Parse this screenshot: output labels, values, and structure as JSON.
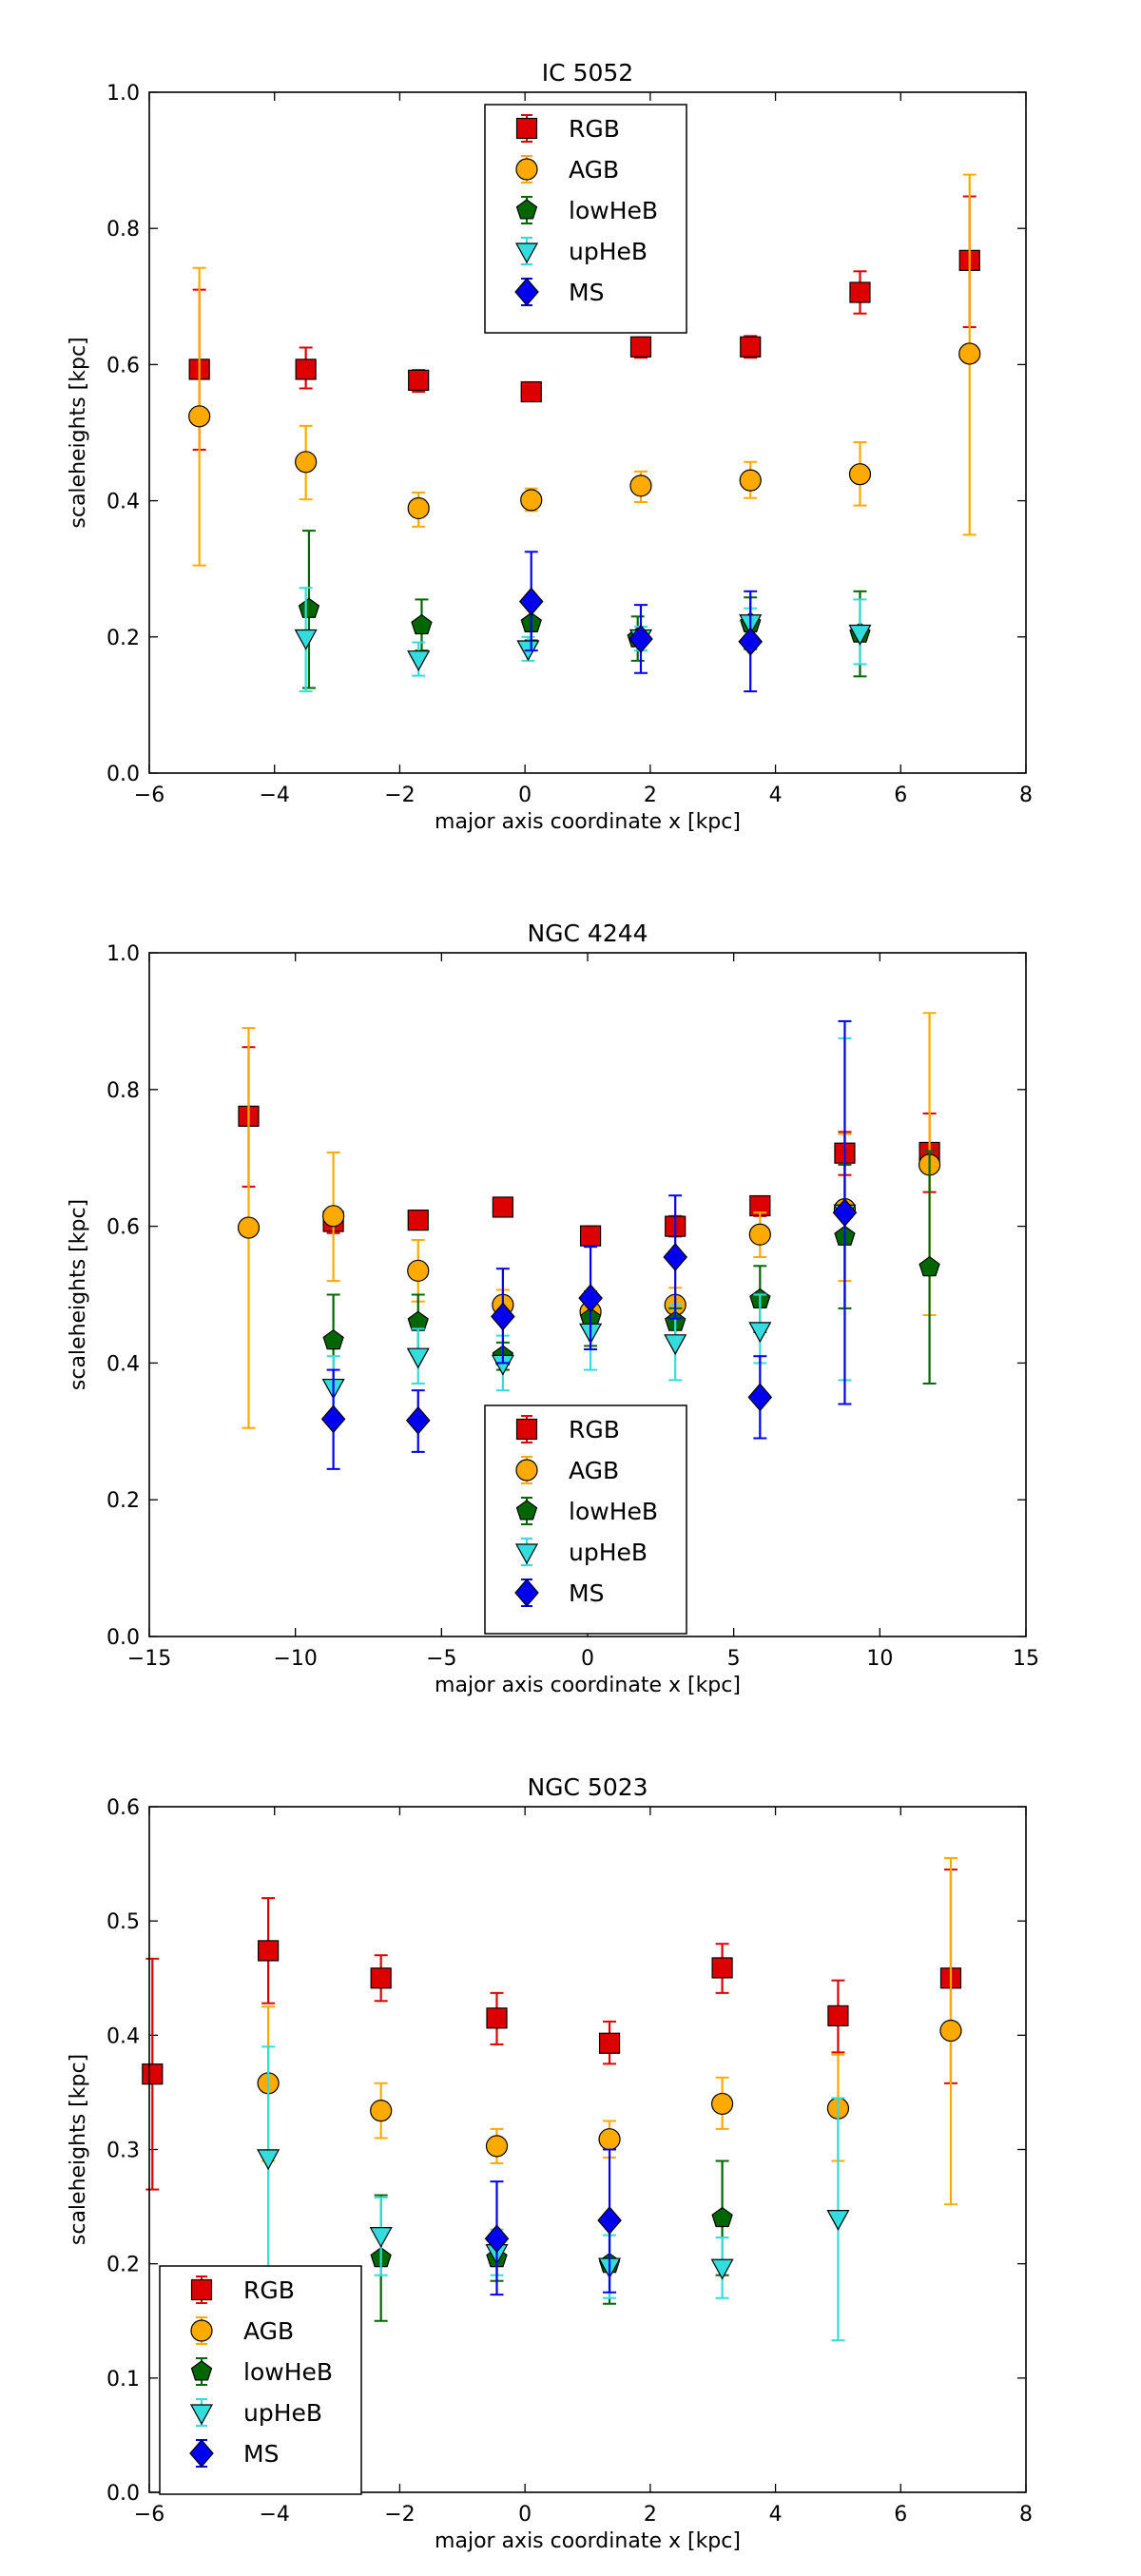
{
  "chart_data": [
    {
      "type": "scatter",
      "title": "IC 5052",
      "xlabel": "major axis coordinate x [kpc]",
      "ylabel": "scaleheights [kpc]",
      "xlim": [
        -6,
        8
      ],
      "ylim": [
        0.0,
        1.0
      ],
      "xticks": [
        -6,
        -4,
        -2,
        0,
        2,
        4,
        6,
        8
      ],
      "xtick_labels": [
        "−6",
        "−4",
        "−2",
        "0",
        "2",
        "4",
        "6",
        "8"
      ],
      "yticks": [
        0.0,
        0.2,
        0.4,
        0.6,
        0.8,
        1.0
      ],
      "ytick_labels": [
        "0.0",
        "0.2",
        "0.4",
        "0.6",
        "0.8",
        "1.0"
      ],
      "legend_position": "upper-center",
      "series": [
        {
          "name": "RGB",
          "marker": "square",
          "color": "#dd0000",
          "points": [
            {
              "x": -5.2,
              "y": 0.593,
              "lo": 0.475,
              "hi": 0.71
            },
            {
              "x": -3.5,
              "y": 0.593,
              "lo": 0.565,
              "hi": 0.625
            },
            {
              "x": -1.7,
              "y": 0.577,
              "lo": 0.56,
              "hi": 0.592
            },
            {
              "x": 0.1,
              "y": 0.56,
              "lo": 0.555,
              "hi": 0.565
            },
            {
              "x": 1.85,
              "y": 0.626,
              "lo": 0.61,
              "hi": 0.64
            },
            {
              "x": 3.6,
              "y": 0.626,
              "lo": 0.61,
              "hi": 0.642
            },
            {
              "x": 5.35,
              "y": 0.706,
              "lo": 0.675,
              "hi": 0.737
            },
            {
              "x": 7.1,
              "y": 0.753,
              "lo": 0.655,
              "hi": 0.847
            }
          ]
        },
        {
          "name": "AGB",
          "marker": "circle",
          "color": "#ffaa00",
          "points": [
            {
              "x": -5.2,
              "y": 0.524,
              "lo": 0.305,
              "hi": 0.742
            },
            {
              "x": -3.5,
              "y": 0.457,
              "lo": 0.402,
              "hi": 0.51
            },
            {
              "x": -1.7,
              "y": 0.389,
              "lo": 0.362,
              "hi": 0.412
            },
            {
              "x": 0.1,
              "y": 0.401,
              "lo": 0.385,
              "hi": 0.418
            },
            {
              "x": 1.85,
              "y": 0.422,
              "lo": 0.398,
              "hi": 0.443
            },
            {
              "x": 3.6,
              "y": 0.43,
              "lo": 0.404,
              "hi": 0.457
            },
            {
              "x": 5.35,
              "y": 0.439,
              "lo": 0.393,
              "hi": 0.486
            },
            {
              "x": 7.1,
              "y": 0.616,
              "lo": 0.35,
              "hi": 0.879
            }
          ]
        },
        {
          "name": "lowHeB",
          "marker": "pentagon",
          "color": "#006600",
          "points": [
            {
              "x": -3.45,
              "y": 0.241,
              "lo": 0.125,
              "hi": 0.356
            },
            {
              "x": -1.65,
              "y": 0.217,
              "lo": 0.18,
              "hi": 0.255
            },
            {
              "x": 0.1,
              "y": 0.22,
              "lo": 0.195,
              "hi": 0.245
            },
            {
              "x": 1.8,
              "y": 0.198,
              "lo": 0.165,
              "hi": 0.23
            },
            {
              "x": 3.6,
              "y": 0.22,
              "lo": 0.182,
              "hi": 0.258
            },
            {
              "x": 5.35,
              "y": 0.205,
              "lo": 0.142,
              "hi": 0.267
            }
          ]
        },
        {
          "name": "upHeB",
          "marker": "triangle-down",
          "color": "#33dddd",
          "points": [
            {
              "x": -3.5,
              "y": 0.199,
              "lo": 0.12,
              "hi": 0.272
            },
            {
              "x": -1.7,
              "y": 0.168,
              "lo": 0.143,
              "hi": 0.192
            },
            {
              "x": 0.05,
              "y": 0.183,
              "lo": 0.165,
              "hi": 0.2
            },
            {
              "x": 1.85,
              "y": 0.199,
              "lo": 0.18,
              "hi": 0.215
            },
            {
              "x": 3.6,
              "y": 0.221,
              "lo": 0.2,
              "hi": 0.242
            },
            {
              "x": 5.35,
              "y": 0.206,
              "lo": 0.16,
              "hi": 0.255
            }
          ]
        },
        {
          "name": "MS",
          "marker": "diamond",
          "color": "#0000ee",
          "points": [
            {
              "x": 0.1,
              "y": 0.252,
              "lo": 0.18,
              "hi": 0.325
            },
            {
              "x": 1.85,
              "y": 0.197,
              "lo": 0.147,
              "hi": 0.247
            },
            {
              "x": 3.6,
              "y": 0.193,
              "lo": 0.12,
              "hi": 0.267
            }
          ]
        }
      ]
    },
    {
      "type": "scatter",
      "title": "NGC 4244",
      "xlabel": "major axis coordinate x [kpc]",
      "ylabel": "scaleheights [kpc]",
      "xlim": [
        -15,
        15
      ],
      "ylim": [
        0.0,
        1.0
      ],
      "xticks": [
        -15,
        -10,
        -5,
        0,
        5,
        10,
        15
      ],
      "xtick_labels": [
        "−15",
        "−10",
        "−5",
        "0",
        "5",
        "10",
        "15"
      ],
      "yticks": [
        0.0,
        0.2,
        0.4,
        0.6,
        0.8,
        1.0
      ],
      "ytick_labels": [
        "0.0",
        "0.2",
        "0.4",
        "0.6",
        "0.8",
        "1.0"
      ],
      "legend_position": "lower-center",
      "series": [
        {
          "name": "RGB",
          "marker": "square",
          "color": "#dd0000",
          "points": [
            {
              "x": -11.6,
              "y": 0.761,
              "lo": 0.658,
              "hi": 0.862
            },
            {
              "x": -8.7,
              "y": 0.607,
              "lo": 0.59,
              "hi": 0.625
            },
            {
              "x": -5.8,
              "y": 0.609,
              "lo": 0.597,
              "hi": 0.62
            },
            {
              "x": -2.9,
              "y": 0.628,
              "lo": 0.617,
              "hi": 0.64
            },
            {
              "x": 0.1,
              "y": 0.586,
              "lo": 0.575,
              "hi": 0.6
            },
            {
              "x": 3.0,
              "y": 0.6,
              "lo": 0.585,
              "hi": 0.615
            },
            {
              "x": 5.9,
              "y": 0.63,
              "lo": 0.615,
              "hi": 0.642
            },
            {
              "x": 8.8,
              "y": 0.707,
              "lo": 0.675,
              "hi": 0.738
            },
            {
              "x": 11.7,
              "y": 0.708,
              "lo": 0.65,
              "hi": 0.765
            }
          ]
        },
        {
          "name": "AGB",
          "marker": "circle",
          "color": "#ffaa00",
          "points": [
            {
              "x": -11.6,
              "y": 0.598,
              "lo": 0.305,
              "hi": 0.89
            },
            {
              "x": -8.7,
              "y": 0.615,
              "lo": 0.52,
              "hi": 0.708
            },
            {
              "x": -5.8,
              "y": 0.535,
              "lo": 0.49,
              "hi": 0.58
            },
            {
              "x": -2.9,
              "y": 0.485,
              "lo": 0.462,
              "hi": 0.507
            },
            {
              "x": 0.1,
              "y": 0.475,
              "lo": 0.455,
              "hi": 0.495
            },
            {
              "x": 3.0,
              "y": 0.485,
              "lo": 0.462,
              "hi": 0.51
            },
            {
              "x": 5.9,
              "y": 0.588,
              "lo": 0.555,
              "hi": 0.62
            },
            {
              "x": 8.8,
              "y": 0.625,
              "lo": 0.52,
              "hi": 0.735
            },
            {
              "x": 11.7,
              "y": 0.69,
              "lo": 0.47,
              "hi": 0.912
            }
          ]
        },
        {
          "name": "lowHeB",
          "marker": "pentagon",
          "color": "#006600",
          "points": [
            {
              "x": -8.7,
              "y": 0.433,
              "lo": 0.365,
              "hi": 0.5
            },
            {
              "x": -5.8,
              "y": 0.46,
              "lo": 0.42,
              "hi": 0.5
            },
            {
              "x": -2.9,
              "y": 0.41,
              "lo": 0.39,
              "hi": 0.43
            },
            {
              "x": 0.1,
              "y": 0.465,
              "lo": 0.425,
              "hi": 0.505
            },
            {
              "x": 3.0,
              "y": 0.46,
              "lo": 0.44,
              "hi": 0.48
            },
            {
              "x": 5.9,
              "y": 0.493,
              "lo": 0.445,
              "hi": 0.542
            },
            {
              "x": 8.8,
              "y": 0.585,
              "lo": 0.48,
              "hi": 0.69
            },
            {
              "x": 11.7,
              "y": 0.54,
              "lo": 0.37,
              "hi": 0.71
            }
          ]
        },
        {
          "name": "upHeB",
          "marker": "triangle-down",
          "color": "#33dddd",
          "points": [
            {
              "x": -8.7,
              "y": 0.365,
              "lo": 0.32,
              "hi": 0.41
            },
            {
              "x": -5.8,
              "y": 0.41,
              "lo": 0.37,
              "hi": 0.45
            },
            {
              "x": -2.9,
              "y": 0.4,
              "lo": 0.36,
              "hi": 0.44
            },
            {
              "x": 0.1,
              "y": 0.446,
              "lo": 0.39,
              "hi": 0.5
            },
            {
              "x": 3.0,
              "y": 0.43,
              "lo": 0.375,
              "hi": 0.485
            },
            {
              "x": 5.9,
              "y": 0.448,
              "lo": 0.4,
              "hi": 0.5
            },
            {
              "x": 8.8,
              "y": 0.62,
              "lo": 0.375,
              "hi": 0.875
            }
          ]
        },
        {
          "name": "MS",
          "marker": "diamond",
          "color": "#0000ee",
          "points": [
            {
              "x": -8.7,
              "y": 0.318,
              "lo": 0.245,
              "hi": 0.39
            },
            {
              "x": -5.8,
              "y": 0.316,
              "lo": 0.27,
              "hi": 0.36
            },
            {
              "x": -2.9,
              "y": 0.468,
              "lo": 0.4,
              "hi": 0.538
            },
            {
              "x": 0.1,
              "y": 0.495,
              "lo": 0.42,
              "hi": 0.57
            },
            {
              "x": 3.0,
              "y": 0.555,
              "lo": 0.465,
              "hi": 0.645
            },
            {
              "x": 5.9,
              "y": 0.35,
              "lo": 0.29,
              "hi": 0.41
            },
            {
              "x": 8.8,
              "y": 0.62,
              "lo": 0.34,
              "hi": 0.9
            }
          ]
        }
      ]
    },
    {
      "type": "scatter",
      "title": "NGC 5023",
      "xlabel": "major axis coordinate x [kpc]",
      "ylabel": "scaleheights [kpc]",
      "xlim": [
        -6,
        8
      ],
      "ylim": [
        0.0,
        0.6
      ],
      "xticks": [
        -6,
        -4,
        -2,
        0,
        2,
        4,
        6,
        8
      ],
      "xtick_labels": [
        "−6",
        "−4",
        "−2",
        "0",
        "2",
        "4",
        "6",
        "8"
      ],
      "yticks": [
        0.0,
        0.1,
        0.2,
        0.3,
        0.4,
        0.5,
        0.6
      ],
      "ytick_labels": [
        "0.0",
        "0.1",
        "0.2",
        "0.3",
        "0.4",
        "0.5",
        "0.6"
      ],
      "legend_position": "lower-left",
      "series": [
        {
          "name": "RGB",
          "marker": "square",
          "color": "#dd0000",
          "points": [
            {
              "x": -5.95,
              "y": 0.366,
              "lo": 0.265,
              "hi": 0.467
            },
            {
              "x": -4.1,
              "y": 0.474,
              "lo": 0.428,
              "hi": 0.52
            },
            {
              "x": -2.3,
              "y": 0.45,
              "lo": 0.43,
              "hi": 0.47
            },
            {
              "x": -0.45,
              "y": 0.415,
              "lo": 0.392,
              "hi": 0.437
            },
            {
              "x": 1.35,
              "y": 0.393,
              "lo": 0.375,
              "hi": 0.412
            },
            {
              "x": 3.15,
              "y": 0.459,
              "lo": 0.437,
              "hi": 0.48
            },
            {
              "x": 5.0,
              "y": 0.417,
              "lo": 0.385,
              "hi": 0.448
            },
            {
              "x": 6.8,
              "y": 0.45,
              "lo": 0.358,
              "hi": 0.545
            }
          ]
        },
        {
          "name": "AGB",
          "marker": "circle",
          "color": "#ffaa00",
          "points": [
            {
              "x": -4.1,
              "y": 0.358,
              "lo": 0.29,
              "hi": 0.425
            },
            {
              "x": -2.3,
              "y": 0.334,
              "lo": 0.31,
              "hi": 0.358
            },
            {
              "x": -0.45,
              "y": 0.303,
              "lo": 0.288,
              "hi": 0.318
            },
            {
              "x": 1.35,
              "y": 0.309,
              "lo": 0.293,
              "hi": 0.325
            },
            {
              "x": 3.15,
              "y": 0.34,
              "lo": 0.318,
              "hi": 0.363
            },
            {
              "x": 5.0,
              "y": 0.336,
              "lo": 0.29,
              "hi": 0.383
            },
            {
              "x": 6.8,
              "y": 0.404,
              "lo": 0.252,
              "hi": 0.555
            }
          ]
        },
        {
          "name": "lowHeB",
          "marker": "pentagon",
          "color": "#006600",
          "points": [
            {
              "x": -2.3,
              "y": 0.205,
              "lo": 0.15,
              "hi": 0.26
            },
            {
              "x": -0.45,
              "y": 0.205,
              "lo": 0.185,
              "hi": 0.225
            },
            {
              "x": 1.35,
              "y": 0.2,
              "lo": 0.165,
              "hi": 0.235
            },
            {
              "x": 3.15,
              "y": 0.24,
              "lo": 0.19,
              "hi": 0.29
            }
          ]
        },
        {
          "name": "upHeB",
          "marker": "triangle-down",
          "color": "#33dddd",
          "points": [
            {
              "x": -4.1,
              "y": 0.293,
              "lo": 0.19,
              "hi": 0.39
            },
            {
              "x": -2.3,
              "y": 0.225,
              "lo": 0.19,
              "hi": 0.258
            },
            {
              "x": -0.45,
              "y": 0.21,
              "lo": 0.19,
              "hi": 0.23
            },
            {
              "x": 1.35,
              "y": 0.198,
              "lo": 0.17,
              "hi": 0.225
            },
            {
              "x": 3.15,
              "y": 0.197,
              "lo": 0.17,
              "hi": 0.223
            },
            {
              "x": 5.0,
              "y": 0.24,
              "lo": 0.133,
              "hi": 0.345
            }
          ]
        },
        {
          "name": "MS",
          "marker": "diamond",
          "color": "#0000ee",
          "points": [
            {
              "x": -0.45,
              "y": 0.222,
              "lo": 0.173,
              "hi": 0.272
            },
            {
              "x": 1.35,
              "y": 0.238,
              "lo": 0.175,
              "hi": 0.3
            }
          ]
        }
      ]
    }
  ]
}
